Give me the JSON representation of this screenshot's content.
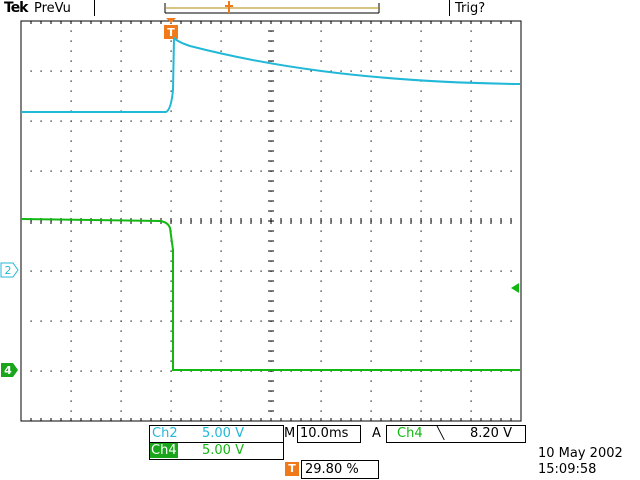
{
  "header": {
    "brand": "Tek",
    "mode": "PreVu",
    "trigger_status": "Trig?"
  },
  "markers": {
    "trigger_pos": "T",
    "ch2": "2",
    "ch4": "4"
  },
  "readouts": {
    "ch2_label": "Ch2",
    "ch2_scale": "5.00 V",
    "ch4_label": "Ch4",
    "ch4_scale": "5.00 V",
    "timebase_prefix": "M",
    "timebase": "10.0ms",
    "acq_mode": "A",
    "trigger_source": "Ch4",
    "trigger_slope_glyph": "╲",
    "trigger_level": "8.20 V",
    "trigger_pos_label": "T",
    "trigger_percent": "29.80 %",
    "date": "10 May 2002",
    "time": "15:09:58"
  },
  "colors": {
    "ch2": "#22b8d8",
    "ch4": "#12b812",
    "trigger": "#f07a1a"
  }
}
